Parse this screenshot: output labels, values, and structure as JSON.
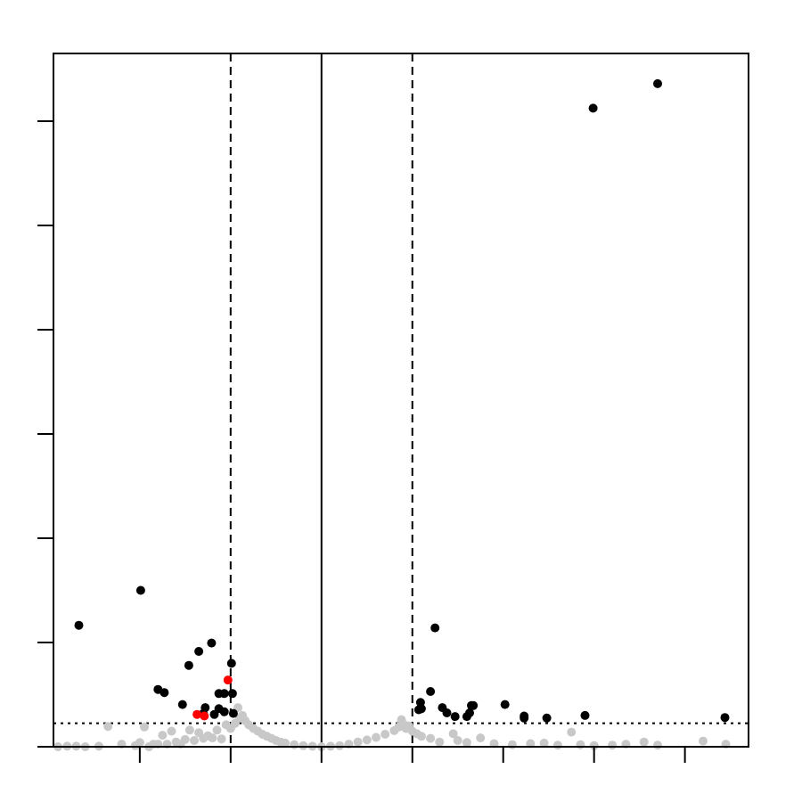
{
  "chart_data": {
    "type": "scatter",
    "title": "",
    "xlabel": "",
    "ylabel": "",
    "xlim": [
      -2.95,
      4.7
    ],
    "ylim": [
      0,
      13.3
    ],
    "x_ticks": [
      -2,
      -1,
      0,
      1,
      2,
      3,
      4
    ],
    "y_ticks": [
      0,
      2,
      4,
      6,
      8,
      10,
      12
    ],
    "reference_lines": {
      "vertical_solid": 0,
      "vertical_dashed": [
        -1,
        1
      ],
      "horizontal_dotted": 0.45
    },
    "colors": {
      "background_points": "#c8c8c8",
      "significant_points": "#000000",
      "highlighted_points": "#ff0000"
    },
    "series": [
      {
        "color": "#c8c8c8",
        "points": [
          [
            -2.9,
            0.0
          ],
          [
            -2.8,
            0.01
          ],
          [
            -2.7,
            0.01
          ],
          [
            -2.6,
            0.0
          ],
          [
            -2.45,
            0.01
          ],
          [
            -2.35,
            0.39
          ],
          [
            -2.2,
            0.05
          ],
          [
            -2.05,
            0.02
          ],
          [
            -2.0,
            0.08
          ],
          [
            -1.95,
            0.38
          ],
          [
            -1.9,
            0.0
          ],
          [
            -1.85,
            0.05
          ],
          [
            -1.8,
            0.05
          ],
          [
            -1.75,
            0.22
          ],
          [
            -1.7,
            0.05
          ],
          [
            -1.65,
            0.3
          ],
          [
            -1.6,
            0.09
          ],
          [
            -1.55,
            0.05
          ],
          [
            -1.5,
            0.14
          ],
          [
            -1.45,
            0.32
          ],
          [
            -1.4,
            0.12
          ],
          [
            -1.35,
            0.27
          ],
          [
            -1.3,
            0.16
          ],
          [
            -1.25,
            0.21
          ],
          [
            -1.2,
            0.17
          ],
          [
            -1.15,
            0.32
          ],
          [
            -1.1,
            0.15
          ],
          [
            -1.05,
            0.42
          ],
          [
            -1.0,
            0.35
          ],
          [
            -0.95,
            0.45
          ],
          [
            -0.92,
            0.75
          ],
          [
            -0.9,
            0.55
          ],
          [
            -0.87,
            0.6
          ],
          [
            -0.84,
            0.5
          ],
          [
            -0.8,
            0.42
          ],
          [
            -0.75,
            0.35
          ],
          [
            -0.7,
            0.3
          ],
          [
            -0.65,
            0.24
          ],
          [
            -0.6,
            0.2
          ],
          [
            -0.55,
            0.16
          ],
          [
            -0.5,
            0.12
          ],
          [
            -0.45,
            0.09
          ],
          [
            -0.4,
            0.07
          ],
          [
            -0.3,
            0.04
          ],
          [
            -0.2,
            0.02
          ],
          [
            -0.1,
            0.01
          ],
          [
            0.0,
            0.0
          ],
          [
            0.1,
            0.01
          ],
          [
            0.2,
            0.02
          ],
          [
            0.3,
            0.05
          ],
          [
            0.4,
            0.09
          ],
          [
            0.5,
            0.13
          ],
          [
            0.6,
            0.18
          ],
          [
            0.7,
            0.24
          ],
          [
            0.8,
            0.31
          ],
          [
            0.85,
            0.38
          ],
          [
            0.88,
            0.52
          ],
          [
            0.9,
            0.44
          ],
          [
            0.93,
            0.35
          ],
          [
            0.96,
            0.4
          ],
          [
            1.0,
            0.3
          ],
          [
            1.05,
            0.25
          ],
          [
            1.1,
            0.2
          ],
          [
            1.2,
            0.16
          ],
          [
            1.3,
            0.09
          ],
          [
            1.45,
            0.25
          ],
          [
            1.5,
            0.12
          ],
          [
            1.6,
            0.08
          ],
          [
            1.75,
            0.17
          ],
          [
            1.9,
            0.06
          ],
          [
            2.1,
            0.04
          ],
          [
            2.3,
            0.06
          ],
          [
            2.45,
            0.07
          ],
          [
            2.6,
            0.03
          ],
          [
            2.75,
            0.28
          ],
          [
            2.85,
            0.04
          ],
          [
            3.0,
            0.02
          ],
          [
            3.2,
            0.03
          ],
          [
            3.35,
            0.05
          ],
          [
            3.55,
            0.09
          ],
          [
            3.7,
            0.03
          ],
          [
            4.2,
            0.11
          ],
          [
            4.45,
            0.05
          ]
        ]
      },
      {
        "color": "#000000",
        "points": [
          [
            -2.67,
            2.33
          ],
          [
            -1.99,
            3.0
          ],
          [
            -1.8,
            1.1
          ],
          [
            -1.73,
            1.04
          ],
          [
            -1.53,
            0.81
          ],
          [
            -1.46,
            1.56
          ],
          [
            -1.35,
            1.83
          ],
          [
            -1.21,
            1.99
          ],
          [
            -1.13,
            0.73
          ],
          [
            -1.28,
            0.75
          ],
          [
            -1.3,
            0.64
          ],
          [
            -1.18,
            0.62
          ],
          [
            -1.07,
            1.02
          ],
          [
            -1.13,
            1.02
          ],
          [
            -1.07,
            0.67
          ],
          [
            -0.99,
            1.6
          ],
          [
            -0.98,
            1.02
          ],
          [
            -0.97,
            0.64
          ],
          [
            1.09,
            0.85
          ],
          [
            1.1,
            0.73
          ],
          [
            1.07,
            0.71
          ],
          [
            1.2,
            1.06
          ],
          [
            1.25,
            2.28
          ],
          [
            1.33,
            0.75
          ],
          [
            1.38,
            0.65
          ],
          [
            1.47,
            0.58
          ],
          [
            1.6,
            0.58
          ],
          [
            1.63,
            0.65
          ],
          [
            1.65,
            0.79
          ],
          [
            1.67,
            0.79
          ],
          [
            2.02,
            0.81
          ],
          [
            2.23,
            0.55
          ],
          [
            2.23,
            0.59
          ],
          [
            2.48,
            0.55
          ],
          [
            2.9,
            0.6
          ],
          [
            2.99,
            12.25
          ],
          [
            3.7,
            12.72
          ],
          [
            4.44,
            0.56
          ]
        ]
      },
      {
        "color": "#ff0000",
        "points": [
          [
            -1.03,
            1.28
          ],
          [
            -1.37,
            0.62
          ],
          [
            -1.29,
            0.59
          ]
        ]
      }
    ]
  }
}
